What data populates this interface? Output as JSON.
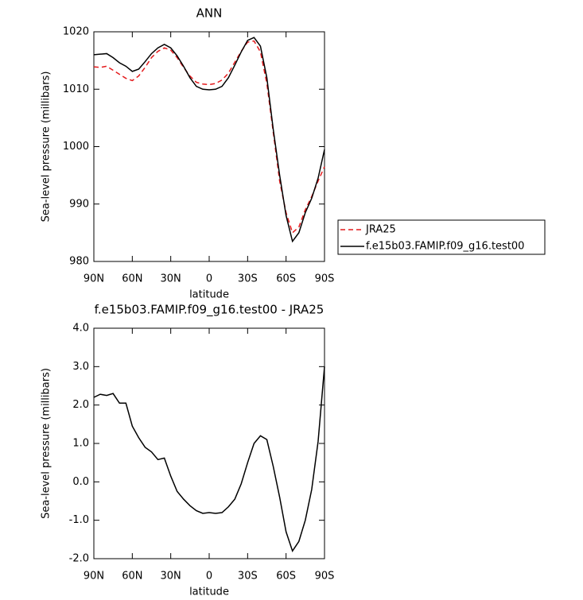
{
  "chart_data": [
    {
      "type": "line",
      "title": "ANN",
      "xlabel": "latitude",
      "ylabel": "Sea-level pressure (millibars)",
      "x": [
        90,
        85,
        80,
        75,
        70,
        65,
        60,
        55,
        50,
        45,
        40,
        35,
        30,
        25,
        20,
        15,
        10,
        5,
        0,
        -5,
        -10,
        -15,
        -20,
        -25,
        -30,
        -35,
        -40,
        -45,
        -50,
        -55,
        -60,
        -65,
        -70,
        -75,
        -80,
        -85,
        -90
      ],
      "series": [
        {
          "name": "JRA25",
          "color": "#e41a1c",
          "dashed": true,
          "values": [
            1013.9,
            1013.8,
            1014.0,
            1013.3,
            1012.6,
            1011.9,
            1011.5,
            1012.3,
            1013.8,
            1015.5,
            1016.6,
            1017.2,
            1016.8,
            1015.5,
            1013.8,
            1012.3,
            1011.2,
            1010.9,
            1010.8,
            1011.0,
            1011.6,
            1012.8,
            1014.7,
            1016.6,
            1018.2,
            1018.4,
            1016.5,
            1011.0,
            1002.5,
            994.0,
            988.5,
            985.0,
            986.0,
            989.0,
            991.3,
            994.0,
            996.5
          ]
        },
        {
          "name": "f.e15b03.FAMIP.f09_g16.test00",
          "color": "#000000",
          "dashed": false,
          "values": [
            1016.0,
            1016.1,
            1016.2,
            1015.5,
            1014.6,
            1014.0,
            1013.1,
            1013.5,
            1014.8,
            1016.2,
            1017.2,
            1017.8,
            1017.2,
            1015.8,
            1014.0,
            1012.0,
            1010.5,
            1010.0,
            1009.9,
            1010.0,
            1010.5,
            1012.0,
            1014.2,
            1016.5,
            1018.5,
            1019.0,
            1017.5,
            1012.0,
            1003.0,
            995.0,
            988.0,
            983.5,
            985.0,
            988.5,
            991.0,
            994.5,
            999.5
          ]
        }
      ],
      "xlim": [
        90,
        -90
      ],
      "xticks": [
        {
          "value": 90,
          "label": "90N"
        },
        {
          "value": 60,
          "label": "60N"
        },
        {
          "value": 30,
          "label": "30N"
        },
        0,
        {
          "value": -30,
          "label": "30S"
        },
        {
          "value": -60,
          "label": "60S"
        },
        {
          "value": -90,
          "label": "90S"
        }
      ],
      "ylim": [
        980,
        1020
      ],
      "yticks": [
        980,
        990,
        1000,
        1010,
        1020
      ]
    },
    {
      "type": "line",
      "title": "f.e15b03.FAMIP.f09_g16.test00 - JRA25",
      "xlabel": "latitude",
      "ylabel": "Sea-level pressure (millibars)",
      "x": [
        90,
        85,
        80,
        75,
        70,
        65,
        60,
        55,
        50,
        45,
        40,
        35,
        30,
        25,
        20,
        15,
        10,
        5,
        0,
        -5,
        -10,
        -15,
        -20,
        -25,
        -30,
        -35,
        -40,
        -45,
        -50,
        -55,
        -60,
        -65,
        -70,
        -75,
        -80,
        -85,
        -90
      ],
      "color": "#000000",
      "values": [
        2.2,
        2.28,
        2.25,
        2.3,
        2.05,
        2.05,
        1.45,
        1.15,
        0.9,
        0.78,
        0.58,
        0.62,
        0.15,
        -0.25,
        -0.45,
        -0.62,
        -0.75,
        -0.82,
        -0.8,
        -0.82,
        -0.8,
        -0.65,
        -0.45,
        -0.05,
        0.5,
        1.0,
        1.2,
        1.1,
        0.4,
        -0.4,
        -1.3,
        -1.8,
        -1.55,
        -1.0,
        -0.2,
        1.05,
        3.0
      ],
      "xlim": [
        90,
        -90
      ],
      "xticks": [
        {
          "value": 90,
          "label": "90N"
        },
        {
          "value": 60,
          "label": "60N"
        },
        {
          "value": 30,
          "label": "30N"
        },
        0,
        {
          "value": -30,
          "label": "30S"
        },
        {
          "value": -60,
          "label": "60S"
        },
        {
          "value": -90,
          "label": "90S"
        }
      ],
      "ylim": [
        -2,
        4
      ],
      "yticks": [
        {
          "value": -2,
          "label": "-2.0"
        },
        {
          "value": -1,
          "label": "-1.0"
        },
        {
          "value": 0,
          "label": "0.0"
        },
        {
          "value": 1,
          "label": "1.0"
        },
        {
          "value": 2,
          "label": "2.0"
        },
        {
          "value": 3,
          "label": "3.0"
        },
        {
          "value": 4,
          "label": "4.0"
        }
      ]
    }
  ]
}
